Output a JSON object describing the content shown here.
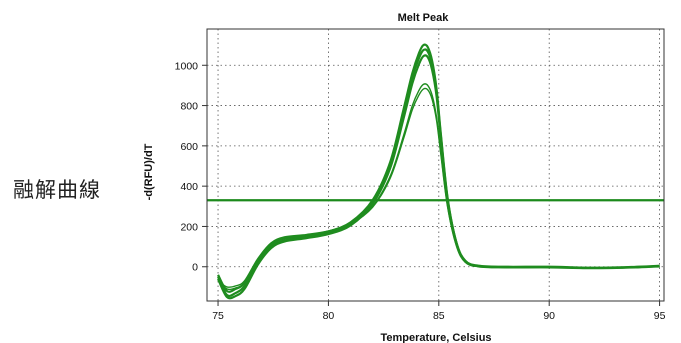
{
  "side_label": "融解曲線",
  "chart_data": {
    "type": "line",
    "title": "Melt Peak",
    "xlabel": "Temperature, Celsius",
    "ylabel": "-d(RFU)/dT",
    "xlim": [
      74.5,
      95.2
    ],
    "ylim": [
      -170,
      1180
    ],
    "xticks": [
      75,
      80,
      85,
      90,
      95
    ],
    "yticks": [
      0,
      200,
      400,
      600,
      800,
      1000
    ],
    "grid": true,
    "threshold": {
      "value": 330,
      "color": "#1c8a1c"
    },
    "series_color": "#1f8c1f",
    "series": [
      {
        "x": [
          75,
          75.4,
          75.8,
          76.2,
          76.8,
          77.4,
          78,
          79,
          80,
          81,
          82,
          82.8,
          83.4,
          83.8,
          84.1,
          84.3,
          84.5,
          84.7,
          84.9,
          85.1,
          85.4,
          85.8,
          86.2,
          86.8,
          88,
          90,
          92,
          94,
          95
        ],
        "y": [
          -40,
          -120,
          -110,
          -80,
          30,
          110,
          140,
          155,
          175,
          220,
          330,
          520,
          780,
          960,
          1060,
          1100,
          1090,
          1020,
          880,
          650,
          340,
          120,
          30,
          5,
          0,
          0,
          -5,
          0,
          5
        ]
      },
      {
        "x": [
          75,
          75.4,
          75.8,
          76.2,
          76.8,
          77.4,
          78,
          79,
          80,
          81,
          82,
          82.8,
          83.4,
          83.8,
          84.1,
          84.3,
          84.5,
          84.7,
          84.9,
          85.1,
          85.4,
          85.8,
          86.2,
          86.8,
          88,
          90,
          92,
          94,
          95
        ],
        "y": [
          -50,
          -140,
          -130,
          -95,
          20,
          100,
          130,
          148,
          168,
          212,
          320,
          505,
          760,
          940,
          1035,
          1075,
          1068,
          1000,
          865,
          640,
          335,
          118,
          28,
          3,
          -2,
          -2,
          -6,
          -2,
          3
        ]
      },
      {
        "x": [
          75,
          75.4,
          75.8,
          76.2,
          76.8,
          77.4,
          78,
          79,
          80,
          81,
          82,
          82.8,
          83.4,
          83.8,
          84.1,
          84.3,
          84.5,
          84.7,
          84.9,
          85.1,
          85.4,
          85.8,
          86.2,
          86.8,
          88,
          90,
          92,
          94,
          95
        ],
        "y": [
          -60,
          -150,
          -145,
          -110,
          10,
          92,
          125,
          142,
          162,
          205,
          312,
          490,
          735,
          910,
          1005,
          1045,
          1040,
          975,
          845,
          625,
          328,
          115,
          26,
          2,
          -3,
          -3,
          -7,
          -3,
          2
        ]
      },
      {
        "x": [
          75,
          75.4,
          75.8,
          76.2,
          76.8,
          77.4,
          78,
          79,
          80,
          81,
          82,
          82.8,
          83.4,
          83.8,
          84.1,
          84.3,
          84.5,
          84.7,
          84.9,
          85.1,
          85.4,
          85.8,
          86.2,
          86.8,
          88,
          90,
          92,
          94,
          95
        ],
        "y": [
          -70,
          -100,
          -95,
          -70,
          40,
          118,
          148,
          160,
          178,
          215,
          300,
          450,
          650,
          800,
          875,
          905,
          900,
          850,
          740,
          560,
          300,
          105,
          24,
          2,
          -2,
          -2,
          -5,
          -1,
          3
        ]
      },
      {
        "x": [
          75,
          75.4,
          75.8,
          76.2,
          76.8,
          77.4,
          78,
          79,
          80,
          81,
          82,
          82.8,
          83.4,
          83.8,
          84.1,
          84.3,
          84.5,
          84.7,
          84.9,
          85.1,
          85.4,
          85.8,
          86.2,
          86.8,
          88,
          90,
          92,
          94,
          95
        ],
        "y": [
          -65,
          -110,
          -105,
          -78,
          35,
          112,
          142,
          156,
          174,
          211,
          295,
          440,
          635,
          780,
          852,
          882,
          878,
          830,
          725,
          550,
          295,
          102,
          22,
          1,
          -3,
          -3,
          -6,
          -2,
          2
        ]
      }
    ]
  }
}
